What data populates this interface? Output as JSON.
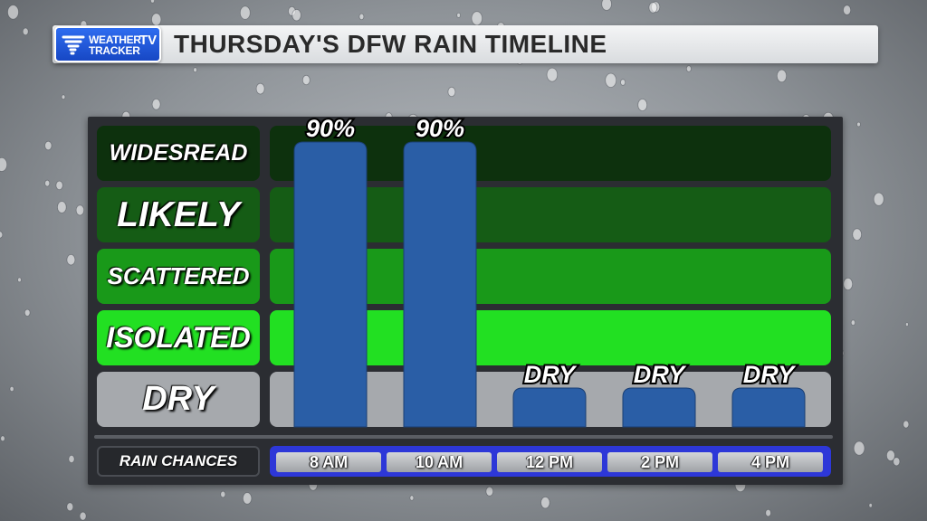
{
  "header": {
    "title": "THURSDAY'S DFW RAIN TIMELINE",
    "logo": {
      "line1": "WEATHER",
      "line2": "TRACKER",
      "tv": "TV",
      "icon": "tornado-icon"
    }
  },
  "colors": {
    "bar": "#2a5ea6",
    "widesread": "#0d310d",
    "likely": "#155c15",
    "scattered": "#199919",
    "isolated": "#22e022",
    "dry": "#a6a9ad",
    "time_strip": "#2d37d8"
  },
  "chart_data": {
    "type": "bar",
    "title": "THURSDAY'S DFW RAIN TIMELINE",
    "x_axis_label": "RAIN CHANCES",
    "y_categories": [
      "DRY",
      "ISOLATED",
      "SCATTERED",
      "LIKELY",
      "WIDESREAD"
    ],
    "categories": [
      "8 AM",
      "10 AM",
      "12 PM",
      "2 PM",
      "4 PM"
    ],
    "values": [
      "WIDESREAD",
      "WIDESREAD",
      "DRY",
      "DRY",
      "DRY"
    ],
    "data_labels": [
      "90%",
      "90%",
      "DRY",
      "DRY",
      "DRY"
    ],
    "legend": "none"
  }
}
